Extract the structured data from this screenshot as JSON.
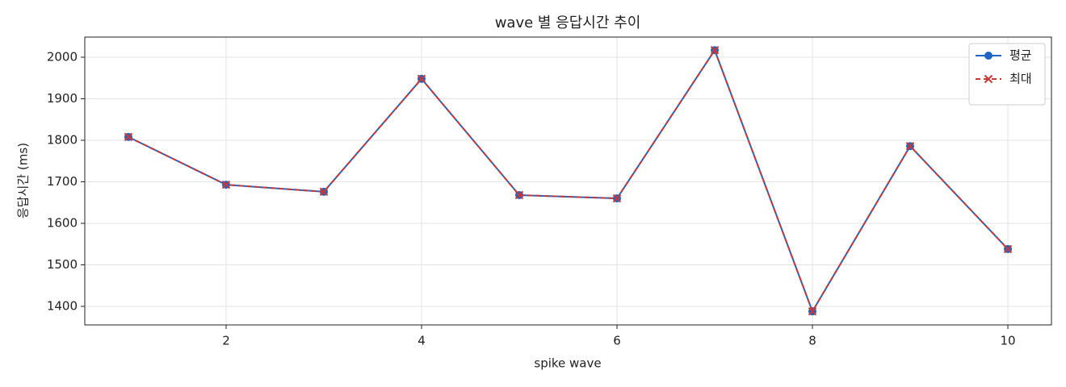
{
  "chart_data": {
    "type": "line",
    "title": "wave 별 응답시간 추이",
    "xlabel": "spike wave",
    "ylabel": "응답시간 (ms)",
    "x": [
      1,
      2,
      3,
      4,
      5,
      6,
      7,
      8,
      9,
      10
    ],
    "series": [
      {
        "name": "평균",
        "color": "#1f66c1",
        "linestyle": "solid",
        "marker": "o",
        "values": [
          1808,
          1693,
          1676,
          1948,
          1668,
          1660,
          2017,
          1388,
          1786,
          1538
        ]
      },
      {
        "name": "최대",
        "color": "#c8373a",
        "linestyle": "dashed",
        "marker": "x",
        "values": [
          1808,
          1693,
          1676,
          1948,
          1668,
          1660,
          2017,
          1388,
          1786,
          1538
        ]
      }
    ],
    "xlim": [
      0.554,
      10.446
    ],
    "xticks": [
      2,
      4,
      6,
      8,
      10
    ],
    "ylim": [
      1355.3,
      2048.5
    ],
    "yticks": [
      1400,
      1500,
      1600,
      1700,
      1800,
      1900,
      2000
    ],
    "grid": true,
    "legend": "upper right"
  }
}
